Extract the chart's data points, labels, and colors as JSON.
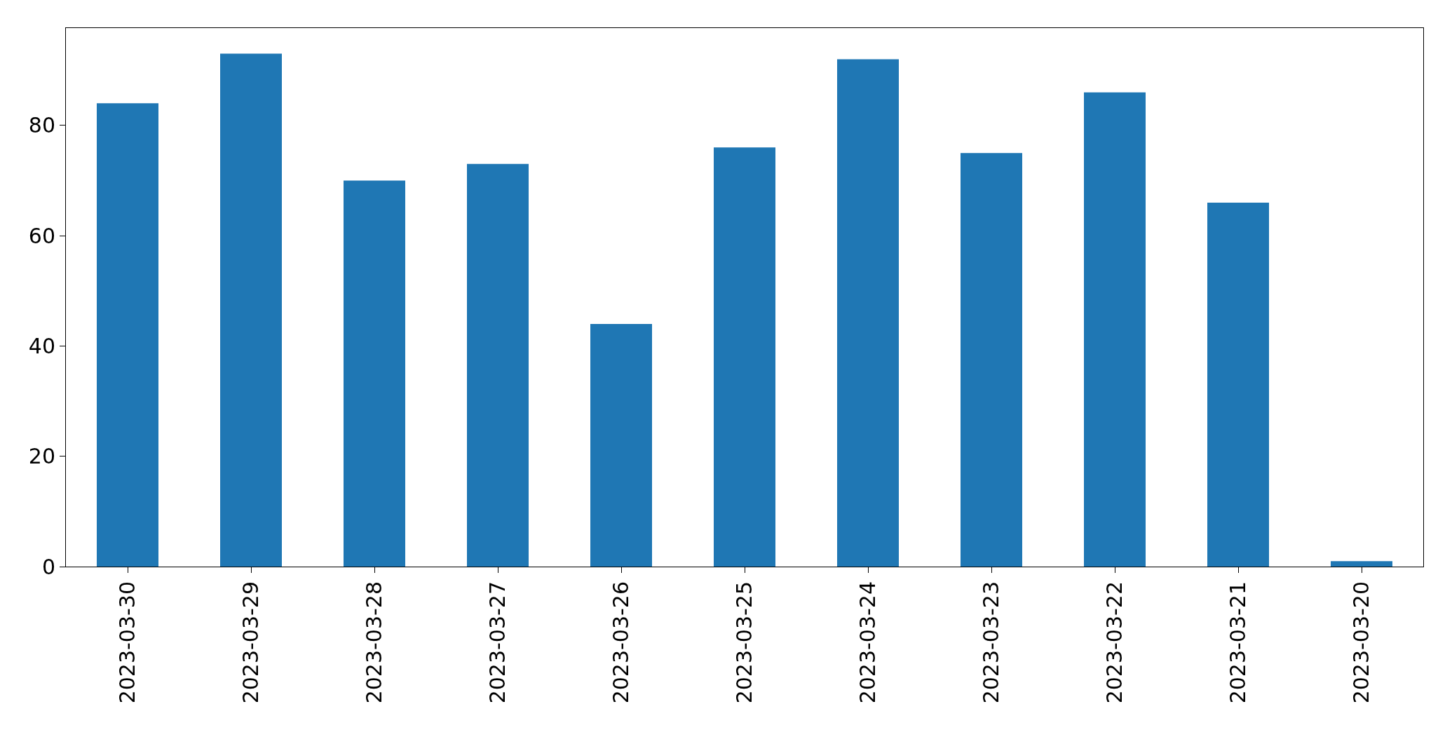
{
  "chart_data": {
    "type": "bar",
    "categories": [
      "2023-03-30",
      "2023-03-29",
      "2023-03-28",
      "2023-03-27",
      "2023-03-26",
      "2023-03-25",
      "2023-03-24",
      "2023-03-23",
      "2023-03-22",
      "2023-03-21",
      "2023-03-20"
    ],
    "values": [
      84,
      93,
      70,
      73,
      44,
      76,
      92,
      75,
      86,
      66,
      1
    ],
    "color": "#1f77b4",
    "ylim": [
      0,
      97.65
    ],
    "yticks": [
      0,
      20,
      40,
      60,
      80
    ],
    "grid": false
  }
}
